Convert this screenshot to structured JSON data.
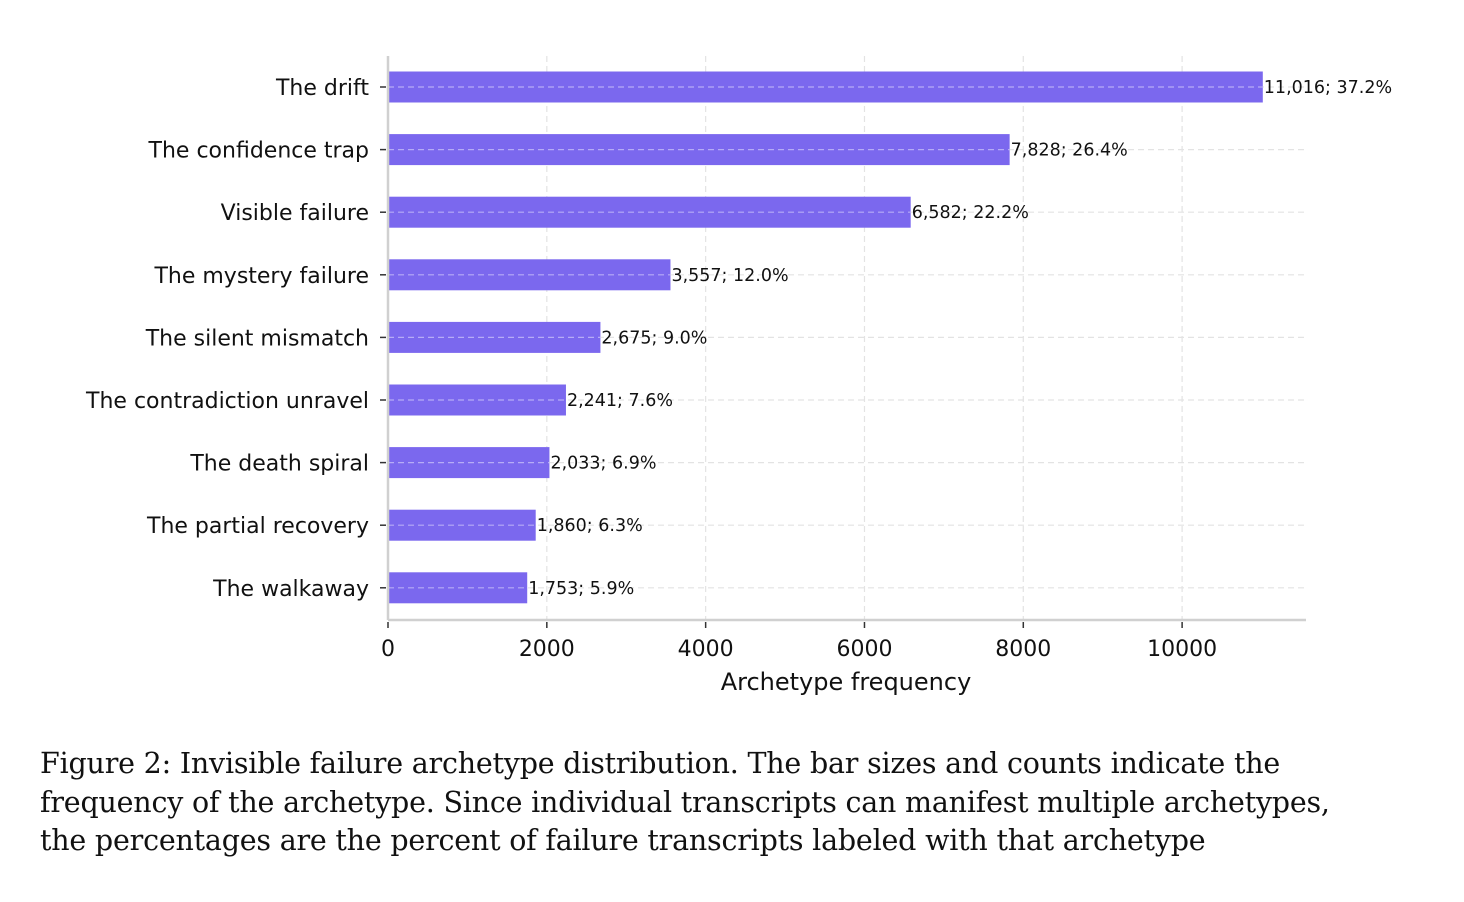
{
  "chart_data": {
    "type": "bar",
    "orientation": "horizontal",
    "categories": [
      "The drift",
      "The confidence trap",
      "Visible failure",
      "The mystery failure",
      "The silent mismatch",
      "The contradiction unravel",
      "The death spiral",
      "The partial recovery",
      "The walkaway"
    ],
    "values": [
      11016,
      7828,
      6582,
      3557,
      2675,
      2241,
      2033,
      1860,
      1753
    ],
    "data_labels": [
      "11,016; 37.2%",
      "7,828; 26.4%",
      "6,582; 22.2%",
      "3,557; 12.0%",
      "2,675; 9.0%",
      "2,241; 7.6%",
      "2,033; 6.9%",
      "1,860; 6.3%",
      "1,753; 5.9%"
    ],
    "xlabel": "Archetype frequency",
    "ylabel": "",
    "xlim": [
      0,
      11560
    ],
    "xticks": [
      0,
      2000,
      4000,
      6000,
      8000,
      10000
    ],
    "xtick_labels": [
      "0",
      "2000",
      "4000",
      "6000",
      "8000",
      "10000"
    ],
    "grid": true,
    "bar_color": "#7b68ee"
  },
  "caption": {
    "line1": "Figure 2: Invisible failure archetype distribution. The bar sizes and counts indicate the",
    "line2": "frequency of the archetype. Since individual transcripts can manifest multiple archetypes,",
    "line3": "the percentages are the percent of failure transcripts labeled with that archetype"
  }
}
